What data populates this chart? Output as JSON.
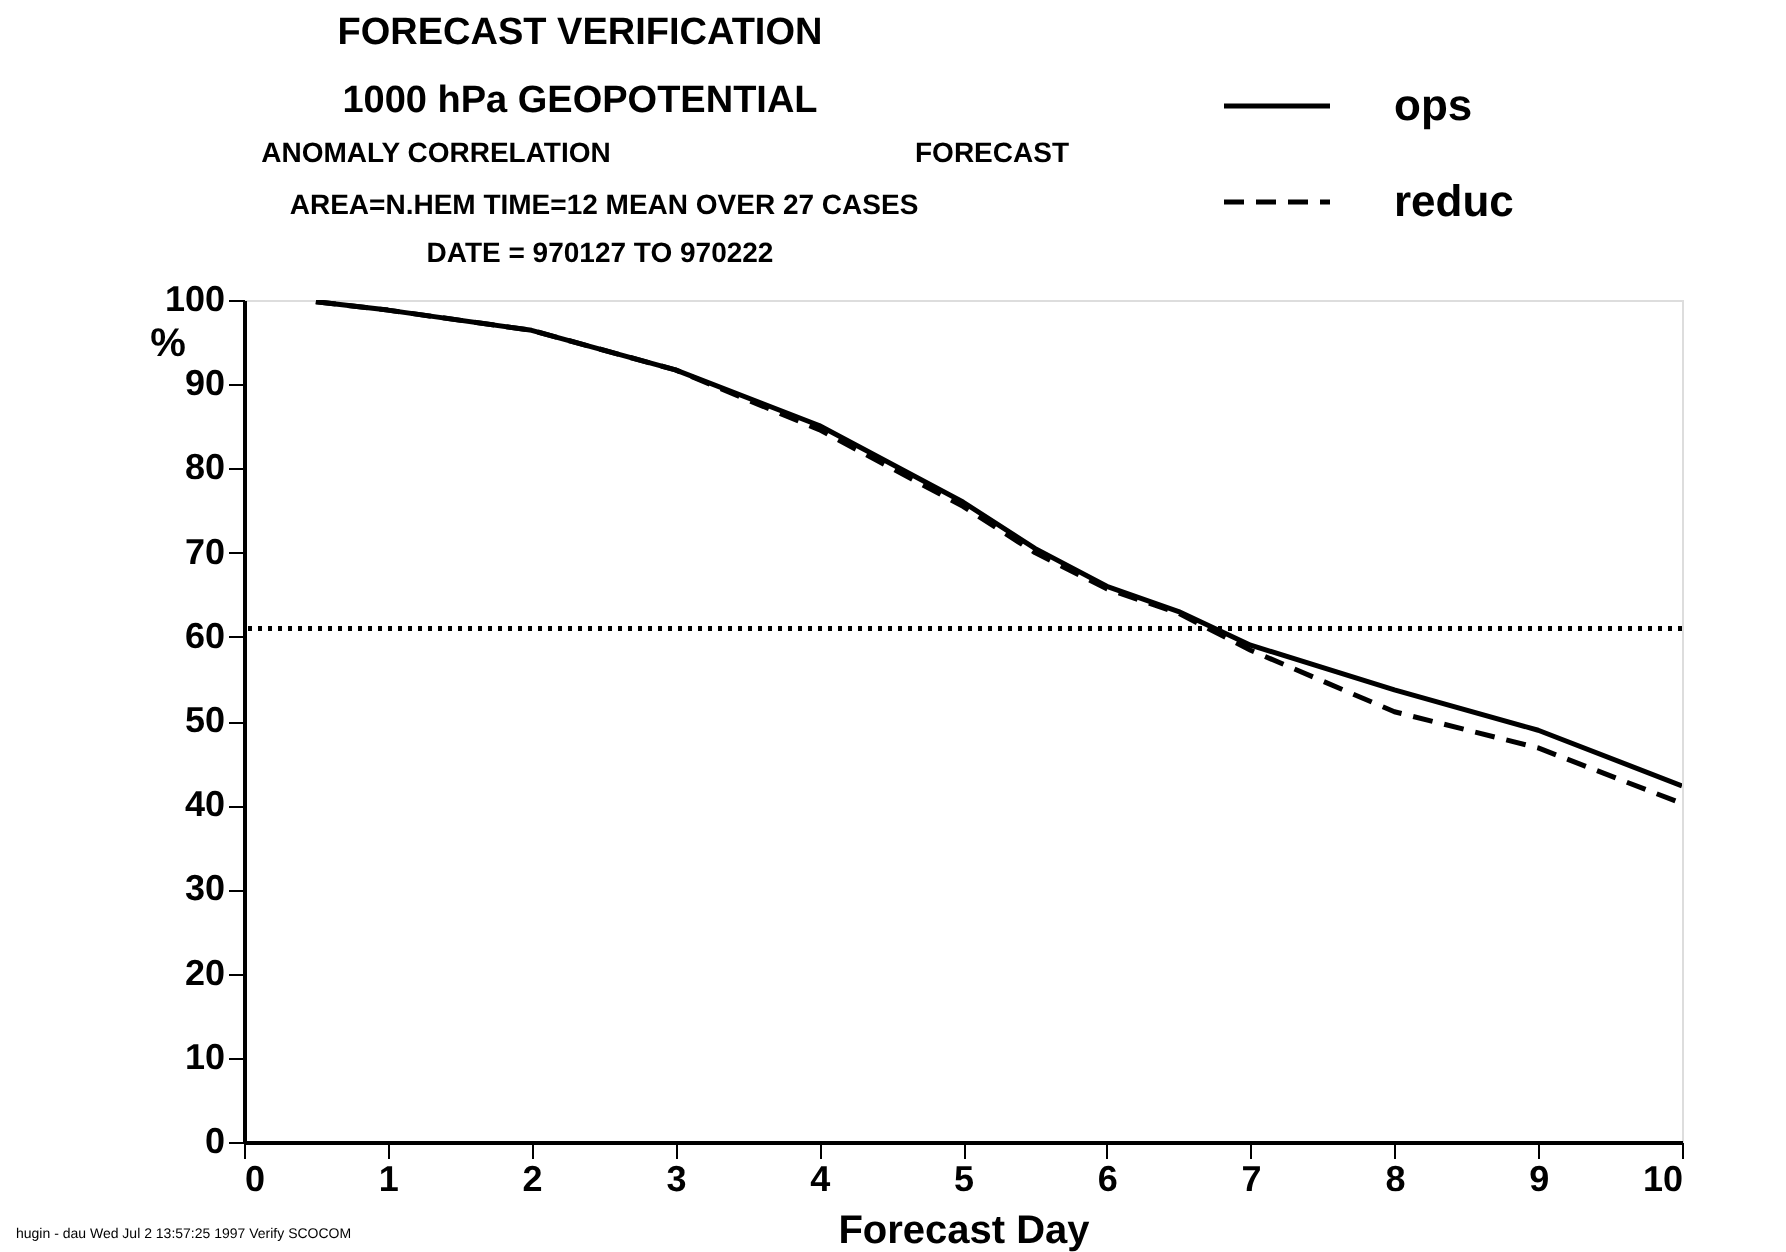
{
  "chart_data": {
    "type": "line",
    "title": "FORECAST VERIFICATION",
    "subtitle": "1000 hPa GEOPOTENTIAL",
    "xlabel": "Forecast Day",
    "ylabel": "%",
    "annotations": [
      "ANOMALY CORRELATION",
      "FORECAST",
      "AREA=N.HEM   TIME=12   MEAN OVER  27 CASES",
      "DATE = 970127 TO 970222",
      "hugin - dau Wed Jul  2 13:57:25 1997 Verify SCOCOM"
    ],
    "x": [
      0.5,
      1,
      2,
      3,
      4,
      5,
      5.5,
      6,
      6.5,
      7,
      8,
      9,
      10
    ],
    "series": [
      {
        "name": "ops",
        "color": "#000000",
        "line_style": "solid",
        "values": [
          99.8,
          98.8,
          96.4,
          91.7,
          85.1,
          76,
          70.5,
          66,
          63,
          59,
          53.7,
          48.9,
          42.3
        ]
      },
      {
        "name": "reduc",
        "color": "#000000",
        "line_style": "dashed",
        "values": [
          99.8,
          98.8,
          96.4,
          91.7,
          84.6,
          75.5,
          70,
          65.7,
          62.8,
          58.4,
          51.1,
          46.8,
          40.2
        ]
      }
    ],
    "ref_lines": [
      {
        "axis": "y",
        "value": 61,
        "line_style": "dotted",
        "color": "#000000"
      }
    ],
    "xlim": [
      0,
      10
    ],
    "xticks": [
      0,
      1,
      2,
      3,
      4,
      5,
      6,
      7,
      8,
      9,
      10
    ],
    "ylim": [
      0,
      100
    ],
    "yticks": [
      0,
      10,
      20,
      30,
      40,
      50,
      60,
      70,
      80,
      90,
      100
    ],
    "grid": false,
    "legend": "top right",
    "marker": "none"
  }
}
